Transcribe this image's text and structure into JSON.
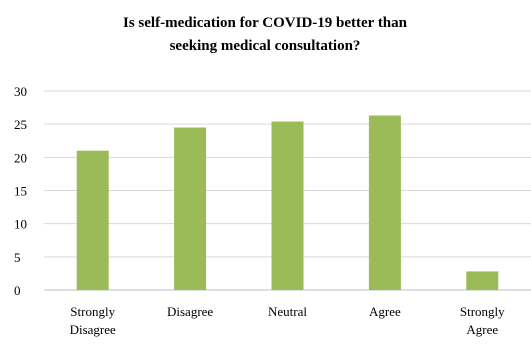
{
  "chart_data": {
    "type": "bar",
    "title_lines": [
      "Is self-medication for COVID-19 better than",
      "seeking medical consultation?"
    ],
    "categories": [
      [
        "Strongly",
        "Disagree"
      ],
      [
        "Disagree"
      ],
      [
        "Neutral"
      ],
      [
        "Agree"
      ],
      [
        "Strongly",
        "Agree"
      ]
    ],
    "values": [
      21,
      24.5,
      25.4,
      26.3,
      2.8
    ],
    "ylim": [
      0,
      30
    ],
    "y_ticks": [
      0,
      5,
      10,
      15,
      20,
      25,
      30
    ],
    "grid": true,
    "legend": "none",
    "colors": {
      "bar": "#9BBB59",
      "grid": "#D9D9D9",
      "axis": "#BFBFBF",
      "text": "#000000"
    }
  }
}
